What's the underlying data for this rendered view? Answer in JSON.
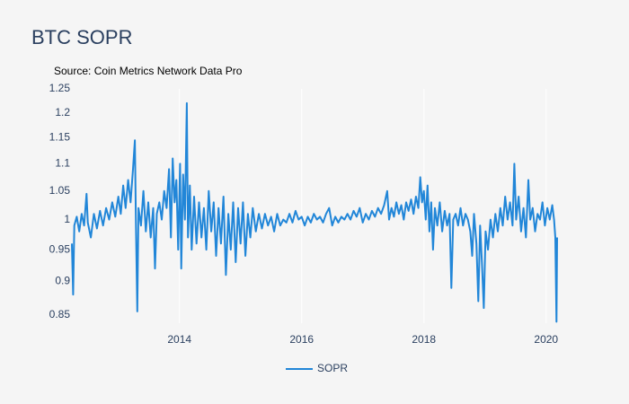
{
  "chart_data": {
    "type": "line",
    "title": "BTC SOPR",
    "annotation": "Source: Coin Metrics Network Data Pro",
    "log_y": true,
    "grid_x": true,
    "legend": "bottom",
    "xlim": [
      2012.24,
      2020.18
    ],
    "xticks": [
      2014,
      2016,
      2018,
      2020
    ],
    "ylim": [
      0.838,
      1.25
    ],
    "yticks": [
      1.25,
      1.2,
      1.15,
      1.1,
      1.05,
      1,
      0.95,
      0.9,
      0.85
    ],
    "x": [
      2012.24,
      2012.26,
      2012.28,
      2012.32,
      2012.36,
      2012.4,
      2012.44,
      2012.48,
      2012.5,
      2012.55,
      2012.6,
      2012.65,
      2012.7,
      2012.75,
      2012.8,
      2012.85,
      2012.9,
      2012.95,
      2013.0,
      2013.04,
      2013.08,
      2013.12,
      2013.16,
      2013.2,
      2013.24,
      2013.27,
      2013.29,
      2013.31,
      2013.33,
      2013.37,
      2013.41,
      2013.45,
      2013.49,
      2013.53,
      2013.57,
      2013.6,
      2013.63,
      2013.67,
      2013.71,
      2013.75,
      2013.79,
      2013.83,
      2013.86,
      2013.89,
      2013.92,
      2013.95,
      2013.98,
      2014.01,
      2014.03,
      2014.06,
      2014.09,
      2014.12,
      2014.14,
      2014.17,
      2014.2,
      2014.24,
      2014.28,
      2014.32,
      2014.36,
      2014.4,
      2014.44,
      2014.48,
      2014.52,
      2014.56,
      2014.6,
      2014.64,
      2014.68,
      2014.72,
      2014.76,
      2014.8,
      2014.84,
      2014.88,
      2014.92,
      2014.96,
      2015.0,
      2015.04,
      2015.08,
      2015.12,
      2015.16,
      2015.2,
      2015.25,
      2015.3,
      2015.35,
      2015.4,
      2015.45,
      2015.5,
      2015.55,
      2015.6,
      2015.65,
      2015.7,
      2015.75,
      2015.8,
      2015.85,
      2015.9,
      2015.95,
      2016.0,
      2016.05,
      2016.1,
      2016.15,
      2016.2,
      2016.25,
      2016.3,
      2016.35,
      2016.4,
      2016.45,
      2016.5,
      2016.55,
      2016.6,
      2016.65,
      2016.7,
      2016.75,
      2016.8,
      2016.85,
      2016.9,
      2016.95,
      2017.0,
      2017.05,
      2017.1,
      2017.15,
      2017.2,
      2017.25,
      2017.3,
      2017.35,
      2017.4,
      2017.43,
      2017.47,
      2017.51,
      2017.55,
      2017.59,
      2017.63,
      2017.67,
      2017.71,
      2017.75,
      2017.79,
      2017.83,
      2017.87,
      2017.91,
      2017.94,
      2017.97,
      2018.0,
      2018.03,
      2018.06,
      2018.09,
      2018.12,
      2018.15,
      2018.18,
      2018.22,
      2018.26,
      2018.3,
      2018.34,
      2018.38,
      2018.42,
      2018.45,
      2018.48,
      2018.52,
      2018.56,
      2018.6,
      2018.64,
      2018.68,
      2018.72,
      2018.76,
      2018.79,
      2018.82,
      2018.86,
      2018.89,
      2018.92,
      2018.95,
      2018.98,
      2019.01,
      2019.05,
      2019.09,
      2019.13,
      2019.17,
      2019.21,
      2019.25,
      2019.29,
      2019.33,
      2019.37,
      2019.41,
      2019.45,
      2019.48,
      2019.51,
      2019.55,
      2019.59,
      2019.63,
      2019.67,
      2019.71,
      2019.74,
      2019.78,
      2019.82,
      2019.86,
      2019.9,
      2019.94,
      2019.98,
      2020.02,
      2020.06,
      2020.1,
      2020.13,
      2020.15,
      2020.17,
      2020.18
    ],
    "series": [
      {
        "name": "SOPR",
        "color": "#2186d8",
        "values": [
          0.96,
          0.88,
          0.99,
          1.005,
          0.98,
          1.01,
          0.99,
          1.045,
          0.995,
          0.97,
          1.01,
          0.985,
          1.015,
          0.99,
          1.02,
          1.0,
          1.03,
          1.005,
          1.04,
          1.01,
          1.06,
          1.02,
          1.07,
          1.03,
          1.09,
          1.145,
          0.98,
          0.855,
          1.02,
          0.99,
          1.05,
          0.98,
          1.03,
          0.97,
          1.02,
          0.92,
          1.01,
          1.03,
          1.0,
          1.05,
          1.02,
          1.09,
          0.97,
          1.11,
          1.03,
          1.07,
          0.95,
          1.1,
          0.92,
          1.08,
          1.0,
          1.22,
          0.97,
          1.06,
          0.95,
          1.04,
          0.96,
          1.03,
          0.97,
          1.02,
          0.95,
          1.05,
          0.98,
          1.03,
          0.94,
          1.02,
          0.96,
          1.04,
          0.91,
          1.01,
          0.95,
          1.03,
          0.93,
          1.02,
          0.96,
          1.03,
          0.94,
          1.01,
          0.97,
          1.02,
          0.98,
          1.01,
          0.985,
          1.01,
          0.99,
          1.005,
          0.98,
          1.01,
          0.99,
          1.0,
          0.995,
          1.01,
          0.995,
          1.015,
          1.0,
          1.005,
          0.99,
          1.005,
          0.995,
          1.01,
          1.0,
          1.005,
          0.995,
          1.01,
          1.02,
          0.99,
          1.005,
          0.995,
          1.005,
          1.0,
          1.01,
          1.0,
          1.015,
          1.005,
          1.02,
          0.995,
          1.01,
          1.0,
          1.015,
          1.005,
          1.02,
          1.01,
          1.025,
          1.05,
          1.0,
          1.02,
          1.005,
          1.03,
          1.01,
          1.025,
          1.0,
          1.03,
          1.015,
          1.035,
          1.01,
          1.04,
          1.02,
          1.075,
          1.03,
          1.05,
          1.0,
          1.06,
          0.98,
          1.03,
          0.95,
          1.02,
          0.99,
          1.03,
          0.98,
          1.015,
          0.99,
          1.01,
          0.89,
          1.0,
          1.01,
          0.99,
          1.02,
          0.99,
          1.01,
          1.0,
          0.98,
          0.94,
          1.01,
          0.96,
          0.87,
          0.99,
          0.93,
          0.86,
          0.98,
          0.95,
          1.0,
          0.97,
          1.01,
          0.98,
          1.02,
          0.99,
          1.04,
          1.0,
          1.03,
          0.99,
          1.1,
          1.0,
          1.04,
          0.98,
          1.02,
          0.97,
          1.07,
          1.0,
          1.02,
          0.98,
          1.01,
          1.0,
          1.03,
          0.99,
          1.02,
          1.0,
          1.025,
          1.0,
          0.97,
          0.84,
          0.97
        ]
      }
    ]
  }
}
